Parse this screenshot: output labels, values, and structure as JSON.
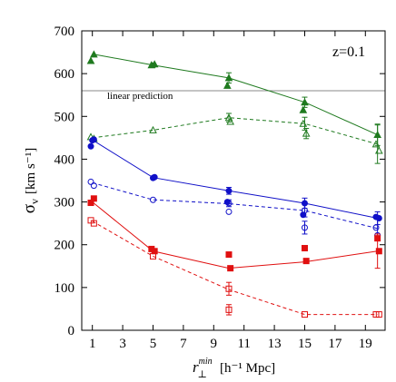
{
  "chart_data": {
    "type": "line",
    "xlabel_main": "r",
    "xlabel_sub": "⊥",
    "xlabel_sup": "min",
    "xlabel_rest": "[h⁻¹ Mpc]",
    "ylabel_main": "σ",
    "ylabel_sub": "v",
    "ylabel_rest": "[km s⁻¹]",
    "annotation_z": "z=0.1",
    "reference_line": {
      "label": "linear prediction",
      "y": 560,
      "color": "#888888"
    },
    "xlim": [
      0.3,
      20.3
    ],
    "ylim": [
      0,
      700
    ],
    "xticks": [
      1,
      3,
      5,
      7,
      9,
      11,
      13,
      15,
      17,
      19
    ],
    "yticks": [
      0,
      100,
      200,
      300,
      400,
      500,
      600,
      700
    ],
    "series": [
      {
        "color": "#1f7a1f",
        "dash": "solid",
        "marker": "triangle",
        "filled": true,
        "line": [
          [
            1.1,
            645
          ],
          [
            5,
            620
          ],
          [
            10,
            590
          ],
          [
            15,
            533
          ],
          [
            19.8,
            457
          ]
        ],
        "points": [
          [
            0.9,
            630
          ],
          [
            1.1,
            645
          ],
          [
            4.9,
            620
          ],
          [
            5.1,
            622
          ],
          [
            10,
            590
          ],
          [
            9.9,
            572
          ],
          [
            15,
            533
          ],
          [
            14.9,
            515
          ],
          [
            19.8,
            457
          ]
        ],
        "err": [
          [
            5,
            620,
            5
          ],
          [
            10,
            590,
            12
          ],
          [
            15,
            533,
            12
          ],
          [
            19.8,
            457,
            25
          ]
        ]
      },
      {
        "color": "#1f7a1f",
        "dash": "dashed",
        "marker": "triangle",
        "filled": false,
        "line": [
          [
            1,
            450
          ],
          [
            5,
            468
          ],
          [
            10,
            497
          ],
          [
            15,
            483
          ],
          [
            19.8,
            435
          ]
        ],
        "points": [
          [
            0.9,
            452
          ],
          [
            1.1,
            448
          ],
          [
            5,
            468
          ],
          [
            10,
            497
          ],
          [
            10.1,
            488
          ],
          [
            14.9,
            483
          ],
          [
            15.1,
            460
          ],
          [
            19.7,
            435
          ],
          [
            19.9,
            420
          ]
        ],
        "err": [
          [
            10,
            497,
            10
          ],
          [
            15,
            483,
            15
          ],
          [
            15.1,
            460,
            12
          ],
          [
            19.8,
            435,
            45
          ]
        ]
      },
      {
        "color": "#1010c8",
        "dash": "solid",
        "marker": "circle",
        "filled": true,
        "line": [
          [
            1,
            445
          ],
          [
            5,
            357
          ],
          [
            10,
            326
          ],
          [
            15,
            297
          ],
          [
            19.8,
            262
          ]
        ],
        "points": [
          [
            0.9,
            430
          ],
          [
            1,
            444
          ],
          [
            1.1,
            446
          ],
          [
            5,
            356
          ],
          [
            5.1,
            358
          ],
          [
            10,
            326
          ],
          [
            9.9,
            300
          ],
          [
            15,
            297
          ],
          [
            14.9,
            270
          ],
          [
            19.7,
            265
          ],
          [
            19.9,
            262
          ]
        ],
        "err": [
          [
            10,
            326,
            8
          ],
          [
            15,
            297,
            12
          ],
          [
            19.8,
            262,
            15
          ]
        ]
      },
      {
        "color": "#1010c8",
        "dash": "dashed",
        "marker": "circle",
        "filled": false,
        "line": [
          [
            1,
            345
          ],
          [
            5,
            305
          ],
          [
            10,
            296
          ],
          [
            15,
            280
          ],
          [
            19.8,
            238
          ]
        ],
        "points": [
          [
            0.9,
            347
          ],
          [
            1.1,
            338
          ],
          [
            5,
            305
          ],
          [
            10,
            297
          ],
          [
            10,
            277
          ],
          [
            15,
            280
          ],
          [
            15,
            240
          ],
          [
            19.7,
            240
          ],
          [
            19.8,
            222
          ]
        ],
        "err": [
          [
            10,
            297,
            8
          ],
          [
            15,
            280,
            15
          ],
          [
            15,
            240,
            15
          ],
          [
            19.8,
            240,
            22
          ]
        ]
      },
      {
        "color": "#e01010",
        "dash": "solid",
        "marker": "square",
        "filled": true,
        "line": [
          [
            1,
            300
          ],
          [
            5,
            185
          ],
          [
            10,
            145
          ],
          [
            15,
            160
          ],
          [
            19.8,
            185
          ]
        ],
        "points": [
          [
            0.9,
            298
          ],
          [
            1.1,
            308
          ],
          [
            4.9,
            190
          ],
          [
            5.1,
            185
          ],
          [
            10,
            177
          ],
          [
            10.1,
            145
          ],
          [
            15,
            192
          ],
          [
            15.1,
            162
          ],
          [
            19.8,
            215
          ],
          [
            19.9,
            185
          ]
        ],
        "err": [
          [
            19.8,
            185,
            40
          ]
        ]
      },
      {
        "color": "#e01010",
        "dash": "dashed",
        "marker": "square",
        "filled": false,
        "line": [
          [
            1,
            255
          ],
          [
            5,
            173
          ],
          [
            10,
            95
          ],
          [
            15,
            37
          ],
          [
            19.8,
            37
          ]
        ],
        "points": [
          [
            0.9,
            257
          ],
          [
            1.1,
            250
          ],
          [
            5,
            173
          ],
          [
            10,
            97
          ],
          [
            10,
            48
          ],
          [
            15,
            37
          ],
          [
            19.7,
            37
          ],
          [
            19.9,
            37
          ]
        ],
        "err": [
          [
            10,
            97,
            15
          ],
          [
            10,
            48,
            12
          ]
        ]
      }
    ]
  }
}
